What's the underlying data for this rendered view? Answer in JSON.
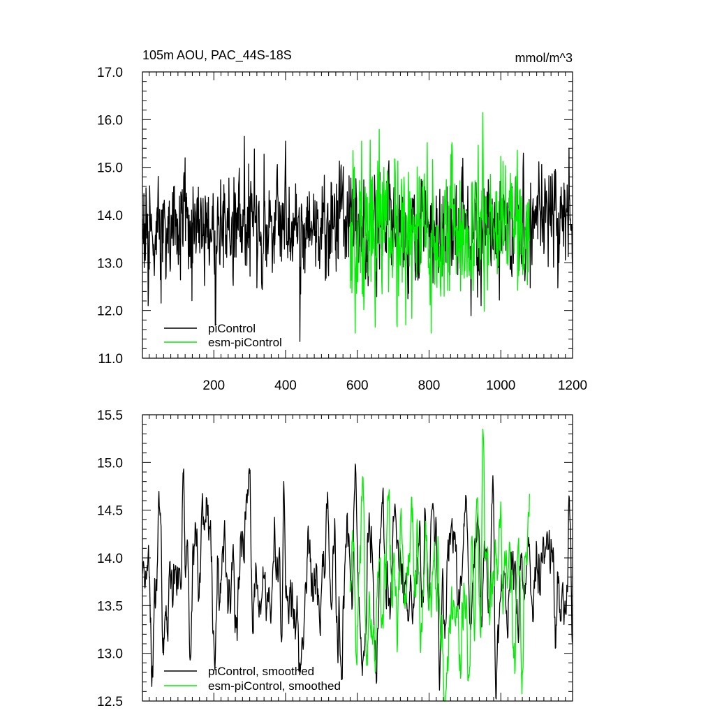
{
  "chart_data": [
    {
      "type": "line",
      "title": "105m AOU, PAC_44S-18S",
      "units_label": "mmol/m^3",
      "xlabel": "",
      "ylabel": "",
      "xlim": [
        1,
        1200
      ],
      "ylim": [
        11.0,
        17.0
      ],
      "x_ticks": [
        200,
        400,
        600,
        800,
        1000,
        1200
      ],
      "y_ticks": [
        11.0,
        12.0,
        13.0,
        14.0,
        15.0,
        16.0,
        17.0
      ],
      "x_tick_labels": [
        "200",
        "400",
        "600",
        "800",
        "1000",
        "1200"
      ],
      "y_tick_labels": [
        "11.0",
        "12.0",
        "13.0",
        "14.0",
        "15.0",
        "16.0",
        "17.0"
      ],
      "legend_position": "bottom-left",
      "series": [
        {
          "name": "piControl",
          "color": "#000000",
          "x_range": [
            1,
            1200
          ],
          "mean": 13.75,
          "amplitude": 0.55,
          "notable_points": [
            [
              17,
              12.1
            ],
            [
              120,
              15.2
            ],
            [
              205,
              11.7
            ],
            [
              285,
              15.65
            ],
            [
              400,
              15.55
            ],
            [
              440,
              11.35
            ],
            [
              555,
              15.05
            ],
            [
              945,
              12.1
            ],
            [
              1190,
              15.4
            ]
          ]
        },
        {
          "name": "esm-piControl",
          "color": "#00ee00",
          "x_range": [
            580,
            1080
          ],
          "mean": 13.7,
          "amplitude": 0.75,
          "notable_points": [
            [
              612,
              15.55
            ],
            [
              650,
              11.65
            ],
            [
              735,
              11.7
            ],
            [
              950,
              16.15
            ]
          ]
        }
      ]
    },
    {
      "type": "line",
      "title": "",
      "xlabel": "",
      "ylabel": "",
      "xlim": [
        1,
        1200
      ],
      "ylim": [
        12.5,
        15.5
      ],
      "x_ticks": [
        200,
        400,
        600,
        800,
        1000,
        1200
      ],
      "y_ticks": [
        12.5,
        13.0,
        13.5,
        14.0,
        14.5,
        15.0,
        15.5
      ],
      "y_tick_labels": [
        "12.5",
        "13.0",
        "13.5",
        "14.0",
        "14.5",
        "15.0",
        "15.5"
      ],
      "legend_position": "bottom-left",
      "series": [
        {
          "name": "piControl, smoothed",
          "color": "#000000",
          "x_range": [
            1,
            1200
          ],
          "mean": 13.8,
          "amplitude": 0.4,
          "notable_points": [
            [
              30,
              12.75
            ],
            [
              45,
              14.45
            ],
            [
              115,
              14.9
            ],
            [
              135,
              12.95
            ],
            [
              205,
              13.1
            ],
            [
              290,
              14.6
            ],
            [
              390,
              12.95
            ],
            [
              395,
              14.8
            ],
            [
              440,
              12.9
            ],
            [
              555,
              12.85
            ],
            [
              985,
              12.75
            ],
            [
              1190,
              14.65
            ]
          ]
        },
        {
          "name": "esm-piControl, smoothed",
          "color": "#00ee00",
          "x_range": [
            580,
            1080
          ],
          "mean": 13.7,
          "amplitude": 0.45,
          "notable_points": [
            [
              598,
              12.9
            ],
            [
              615,
              14.85
            ],
            [
              650,
              12.8
            ],
            [
              685,
              14.65
            ],
            [
              950,
              15.35
            ],
            [
              1060,
              12.8
            ]
          ]
        }
      ]
    }
  ]
}
